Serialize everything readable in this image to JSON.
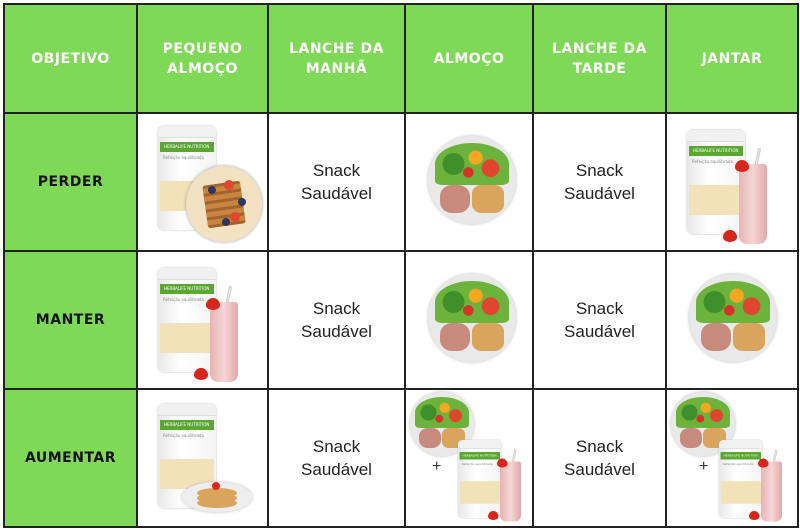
{
  "colors": {
    "header_green": "#7ed957",
    "border": "#222222"
  },
  "headers": [
    "OBJETIVO",
    "PEQUENO ALMOÇO",
    "LANCHE DA MANHÃ",
    "ALMOÇO",
    "LANCHE DA TARDE",
    "JANTAR"
  ],
  "product_logo": {
    "brand": "HERBALIFE NUTRITION",
    "name": "Refeição equilibrada"
  },
  "rows": [
    {
      "goal": "PERDER",
      "breakfast": "shake-canister + waffle plate",
      "morning_snack": "Snack Saudável",
      "lunch": "balanced-plate",
      "afternoon_snack": "Snack Saudável",
      "dinner": "shake-canister + strawberry shake"
    },
    {
      "goal": "MANTER",
      "breakfast": "shake-canister + strawberry shake",
      "morning_snack": "Snack Saudável",
      "lunch": "balanced-plate",
      "afternoon_snack": "Snack Saudável",
      "dinner": "balanced-plate"
    },
    {
      "goal": "AUMENTAR",
      "breakfast": "shake-canister + pancakes",
      "morning_snack": "Snack Saudável",
      "lunch": "balanced-plate + shake",
      "lunch_plus": "+",
      "afternoon_snack": "Snack Saudável",
      "dinner": "balanced-plate + shake",
      "dinner_plus": "+"
    }
  ]
}
